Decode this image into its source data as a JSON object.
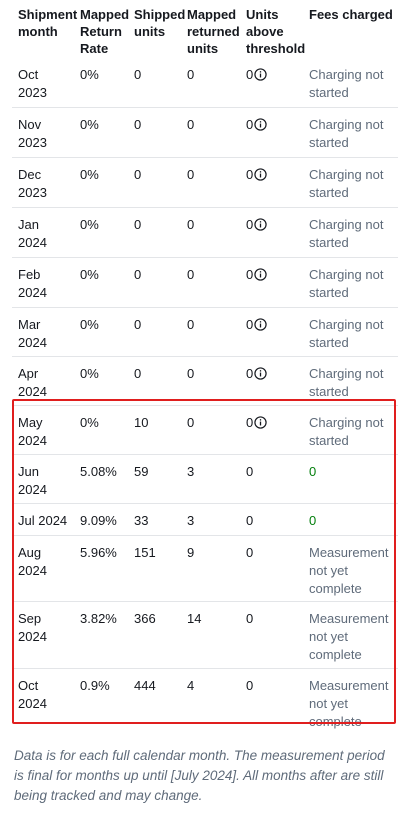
{
  "headers": {
    "month": "Shipment\nmonth",
    "return_rate": "Mapped\nReturn\nRate",
    "shipped": "Shipped\nunits",
    "returned": "Mapped\nreturned\nunits",
    "above": "Units\nabove\nthreshold",
    "fees": "Fees charged"
  },
  "rows": [
    {
      "month": "Oct\n2023",
      "rate": "0%",
      "shipped": "0",
      "returned": "0",
      "above": "0",
      "info": true,
      "fees": "Charging not\nstarted",
      "fee_zero": false
    },
    {
      "month": "Nov\n2023",
      "rate": "0%",
      "shipped": "0",
      "returned": "0",
      "above": "0",
      "info": true,
      "fees": "Charging not\nstarted",
      "fee_zero": false
    },
    {
      "month": "Dec\n2023",
      "rate": "0%",
      "shipped": "0",
      "returned": "0",
      "above": "0",
      "info": true,
      "fees": "Charging not\nstarted",
      "fee_zero": false
    },
    {
      "month": "Jan\n2024",
      "rate": "0%",
      "shipped": "0",
      "returned": "0",
      "above": "0",
      "info": true,
      "fees": "Charging not\nstarted",
      "fee_zero": false
    },
    {
      "month": "Feb\n2024",
      "rate": "0%",
      "shipped": "0",
      "returned": "0",
      "above": "0",
      "info": true,
      "fees": "Charging not\nstarted",
      "fee_zero": false
    },
    {
      "month": "Mar\n2024",
      "rate": "0%",
      "shipped": "0",
      "returned": "0",
      "above": "0",
      "info": true,
      "fees": "Charging not\nstarted",
      "fee_zero": false
    },
    {
      "month": "Apr\n2024",
      "rate": "0%",
      "shipped": "0",
      "returned": "0",
      "above": "0",
      "info": true,
      "fees": "Charging not\nstarted",
      "fee_zero": false
    },
    {
      "month": "May\n2024",
      "rate": "0%",
      "shipped": "10",
      "returned": "0",
      "above": "0",
      "info": true,
      "fees": "Charging not\nstarted",
      "fee_zero": false
    },
    {
      "month": "Jun\n2024",
      "rate": "5.08%",
      "shipped": "59",
      "returned": "3",
      "above": "0",
      "info": false,
      "fees": "0",
      "fee_zero": true
    },
    {
      "month": "Jul 2024",
      "rate": "9.09%",
      "shipped": "33",
      "returned": "3",
      "above": "0",
      "info": false,
      "fees": "0",
      "fee_zero": true
    },
    {
      "month": "Aug\n2024",
      "rate": "5.96%",
      "shipped": "151",
      "returned": "9",
      "above": "0",
      "info": false,
      "fees": "Measurement\nnot yet\ncomplete",
      "fee_zero": false
    },
    {
      "month": "Sep\n2024",
      "rate": "3.82%",
      "shipped": "366",
      "returned": "14",
      "above": "0",
      "info": false,
      "fees": "Measurement\nnot yet\ncomplete",
      "fee_zero": false
    },
    {
      "month": "Oct\n2024",
      "rate": "0.9%",
      "shipped": "444",
      "returned": "4",
      "above": "0",
      "info": false,
      "fees": "Measurement\nnot yet\ncomplete",
      "fee_zero": false
    }
  ],
  "footnote": "Data is for each full calendar month. The measurement period is final for months up until [July 2024]. All months after are still being tracked and may change.",
  "colors": {
    "highlight_border": "#e01e1e",
    "zero_fee": "#037f0c",
    "muted_text": "#5f6b7a"
  }
}
